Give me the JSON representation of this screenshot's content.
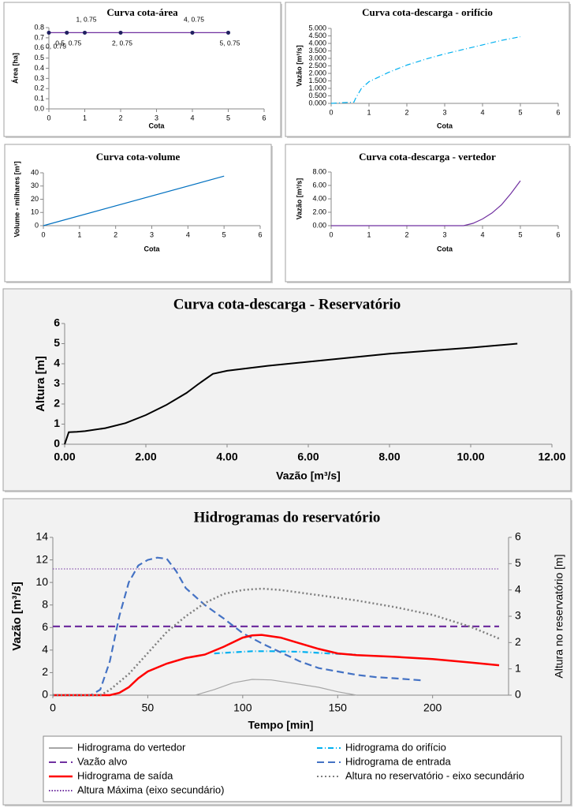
{
  "chart_data": [
    {
      "type": "line",
      "title": "Curva cota-área",
      "xlabel": "Cota",
      "ylabel": "Área [ha]",
      "markers": true,
      "xlim": [
        0,
        6
      ],
      "xticks": [
        0,
        1,
        2,
        3,
        4,
        5,
        6
      ],
      "ylim": [
        0,
        0.8
      ],
      "yticks": [
        {
          "value": 0,
          "label": "0.0"
        },
        0.1,
        0.2,
        0.3,
        0.4,
        0.5,
        0.6,
        0.7,
        0.8
      ],
      "series": [
        {
          "color": "#7030a0",
          "line_style": "solid",
          "x": [
            0,
            0.5,
            1,
            2,
            4,
            5
          ],
          "values": [
            0.75,
            0.75,
            0.75,
            0.75,
            0.75,
            0.75
          ],
          "value_labels": [
            "0, 0.75",
            "0.5, 0.75",
            "1, 0.75",
            "2, 0.75",
            "4, 0.75",
            "5, 0.75"
          ]
        }
      ]
    },
    {
      "type": "line",
      "title": "Curva cota-descarga - orifício",
      "xlabel": "Cota",
      "ylabel": "Vazão  [m³/s]",
      "xlim": [
        0,
        6
      ],
      "xticks": [
        0,
        1,
        2,
        3,
        4,
        5,
        6
      ],
      "ylim": [
        0,
        5
      ],
      "yticks": [
        {
          "value": 0,
          "label": "0.000"
        },
        {
          "value": 0.5,
          "label": "0.500"
        },
        {
          "value": 1,
          "label": "1.000"
        },
        {
          "value": 1.5,
          "label": "1.500"
        },
        {
          "value": 2,
          "label": "2.000"
        },
        {
          "value": 2.5,
          "label": "2.500"
        },
        {
          "value": 3,
          "label": "3.000"
        },
        {
          "value": 3.5,
          "label": "3.500"
        },
        {
          "value": 4,
          "label": "4.000"
        },
        {
          "value": 4.5,
          "label": "4.500"
        },
        {
          "value": 5,
          "label": "5.000"
        }
      ],
      "series": [
        {
          "color": "#00b0f0",
          "line_style": "dash-dot",
          "x": [
            0,
            0.3,
            0.6,
            0.65,
            0.8,
            1,
            1.5,
            2,
            2.5,
            3,
            3.5,
            4,
            4.5,
            5
          ],
          "values": [
            0,
            0.05,
            0.08,
            0.35,
            1.0,
            1.45,
            2.05,
            2.55,
            2.95,
            3.3,
            3.6,
            3.9,
            4.2,
            4.45
          ]
        }
      ]
    },
    {
      "type": "line",
      "title": "Curva cota-volume",
      "xlabel": "Cota",
      "ylabel": "Volume - milhares  [m³]",
      "xlim": [
        0,
        6
      ],
      "xticks": [
        0,
        1,
        2,
        3,
        4,
        5,
        6
      ],
      "ylim": [
        0,
        40
      ],
      "yticks": [
        0,
        10,
        20,
        30,
        40
      ],
      "series": [
        {
          "color": "#0070c0",
          "line_style": "solid",
          "x": [
            0,
            5
          ],
          "values": [
            0,
            37.5
          ]
        }
      ]
    },
    {
      "type": "line",
      "title": "Curva cota-descarga - vertedor",
      "xlabel": "Cota",
      "ylabel": "Vazão  [m³/s]",
      "xlim": [
        0,
        6
      ],
      "xticks": [
        0,
        1,
        2,
        3,
        4,
        5,
        6
      ],
      "ylim": [
        0,
        8
      ],
      "yticks": [
        {
          "value": 0,
          "label": "0.00"
        },
        {
          "value": 2,
          "label": "2.00"
        },
        {
          "value": 4,
          "label": "4.00"
        },
        {
          "value": 6,
          "label": "6.00"
        },
        {
          "value": 8,
          "label": "8.00"
        }
      ],
      "series": [
        {
          "color": "#7030a0",
          "line_style": "solid",
          "x": [
            0,
            3.5,
            3.75,
            4,
            4.25,
            4.5,
            4.75,
            5
          ],
          "values": [
            0,
            0,
            0.35,
            1.0,
            1.9,
            3.1,
            4.8,
            6.7
          ]
        }
      ]
    },
    {
      "type": "line",
      "title": "Curva cota-descarga - Reservatório",
      "xlabel": "Vazão [m³/s]",
      "ylabel": "Altura [m]",
      "xlim": [
        0,
        12
      ],
      "xticks": [
        {
          "value": 0,
          "label": "0.00"
        },
        {
          "value": 2,
          "label": "2.00"
        },
        {
          "value": 4,
          "label": "4.00"
        },
        {
          "value": 6,
          "label": "6.00"
        },
        {
          "value": 8,
          "label": "8.00"
        },
        {
          "value": 10,
          "label": "10.00"
        },
        {
          "value": 12,
          "label": "12.00"
        }
      ],
      "ylim": [
        0,
        6
      ],
      "yticks": [
        0,
        1,
        2,
        3,
        4,
        5,
        6
      ],
      "series": [
        {
          "color": "#000000",
          "line_style": "solid",
          "x": [
            0,
            0.05,
            0.1,
            0.3,
            0.5,
            1,
            1.5,
            2,
            2.5,
            3,
            3.3,
            3.65,
            4,
            5,
            6,
            7,
            8,
            9,
            10,
            11.15
          ],
          "values": [
            0,
            0.3,
            0.6,
            0.62,
            0.65,
            0.8,
            1.05,
            1.45,
            1.95,
            2.55,
            3,
            3.5,
            3.65,
            3.9,
            4.1,
            4.3,
            4.5,
            4.65,
            4.8,
            5.0
          ]
        }
      ]
    },
    {
      "type": "line",
      "title": "Hidrogramas do reservatório",
      "xlabel": "Tempo [min]",
      "ylabel": "Vazão  [m³/s]",
      "y2label": "Altura no reservatório [m]",
      "legend": "bottom",
      "xlim": [
        0,
        240
      ],
      "xticks": [
        0,
        50,
        100,
        150,
        200
      ],
      "ylim": [
        0,
        14
      ],
      "yticks": [
        0,
        2,
        4,
        6,
        8,
        10,
        12,
        14
      ],
      "y2lim": [
        0,
        6
      ],
      "y2ticks": [
        0,
        1,
        2,
        3,
        4,
        5,
        6
      ],
      "series": [
        {
          "name": "Hidrograma do vertedor",
          "color": "#a6a6a6",
          "line_style": "solid",
          "x": [
            75,
            85,
            95,
            105,
            115,
            125,
            140,
            150,
            160
          ],
          "values": [
            0,
            0.5,
            1.1,
            1.4,
            1.35,
            1.1,
            0.7,
            0.3,
            0
          ]
        },
        {
          "name": "Hidrograma do orifício",
          "color": "#00b0f0",
          "line_style": "dash-dot",
          "x": [
            85,
            95,
            105,
            115,
            130,
            145,
            160
          ],
          "values": [
            3.7,
            3.8,
            3.9,
            3.9,
            3.85,
            3.7,
            3.6
          ]
        },
        {
          "name": "Vazão alvo",
          "color": "#7030a0",
          "line_style": "dashed",
          "x": [
            0,
            235
          ],
          "values": [
            6.1,
            6.1
          ]
        },
        {
          "name": "Hidrograma de entrada",
          "color": "#4472c4",
          "line_style": "dashed",
          "x": [
            0,
            20,
            25,
            30,
            35,
            40,
            45,
            50,
            55,
            60,
            65,
            70,
            80,
            90,
            100,
            110,
            120,
            130,
            140,
            150,
            160,
            170,
            180,
            195
          ],
          "values": [
            0,
            0,
            0.5,
            3,
            7,
            10,
            11.5,
            12,
            12.2,
            12.1,
            11,
            9.5,
            8,
            6.8,
            5.5,
            4.6,
            3.8,
            3,
            2.4,
            2.1,
            1.8,
            1.6,
            1.5,
            1.3
          ]
        },
        {
          "name": "Hidrograma de saída",
          "color": "#ff0000",
          "line_style": "solid",
          "x": [
            0,
            30,
            35,
            40,
            45,
            50,
            60,
            70,
            80,
            90,
            100,
            105,
            110,
            120,
            130,
            140,
            150,
            160,
            180,
            200,
            220,
            235
          ],
          "values": [
            0,
            0,
            0.2,
            0.7,
            1.5,
            2.1,
            2.8,
            3.3,
            3.6,
            4.3,
            5.1,
            5.3,
            5.35,
            5.1,
            4.6,
            4.1,
            3.7,
            3.55,
            3.4,
            3.2,
            2.9,
            2.65
          ]
        },
        {
          "name": "Altura no reservatório - eixo secundário",
          "color": "#7f7f7f",
          "line_style": "dotted",
          "axis": "y2",
          "x": [
            0,
            25,
            30,
            40,
            50,
            60,
            70,
            80,
            90,
            100,
            110,
            120,
            140,
            160,
            180,
            200,
            220,
            235
          ],
          "values": [
            0,
            0,
            0.2,
            0.8,
            1.6,
            2.4,
            3,
            3.5,
            3.85,
            4.0,
            4.05,
            4.0,
            3.8,
            3.6,
            3.35,
            3.05,
            2.6,
            2.15
          ]
        },
        {
          "name": "Altura Máxima (eixo secundário)",
          "color": "#7030a0",
          "line_style": "fine-dotted",
          "axis": "y2",
          "x": [
            0,
            235
          ],
          "values": [
            4.8,
            4.8
          ]
        }
      ]
    }
  ]
}
